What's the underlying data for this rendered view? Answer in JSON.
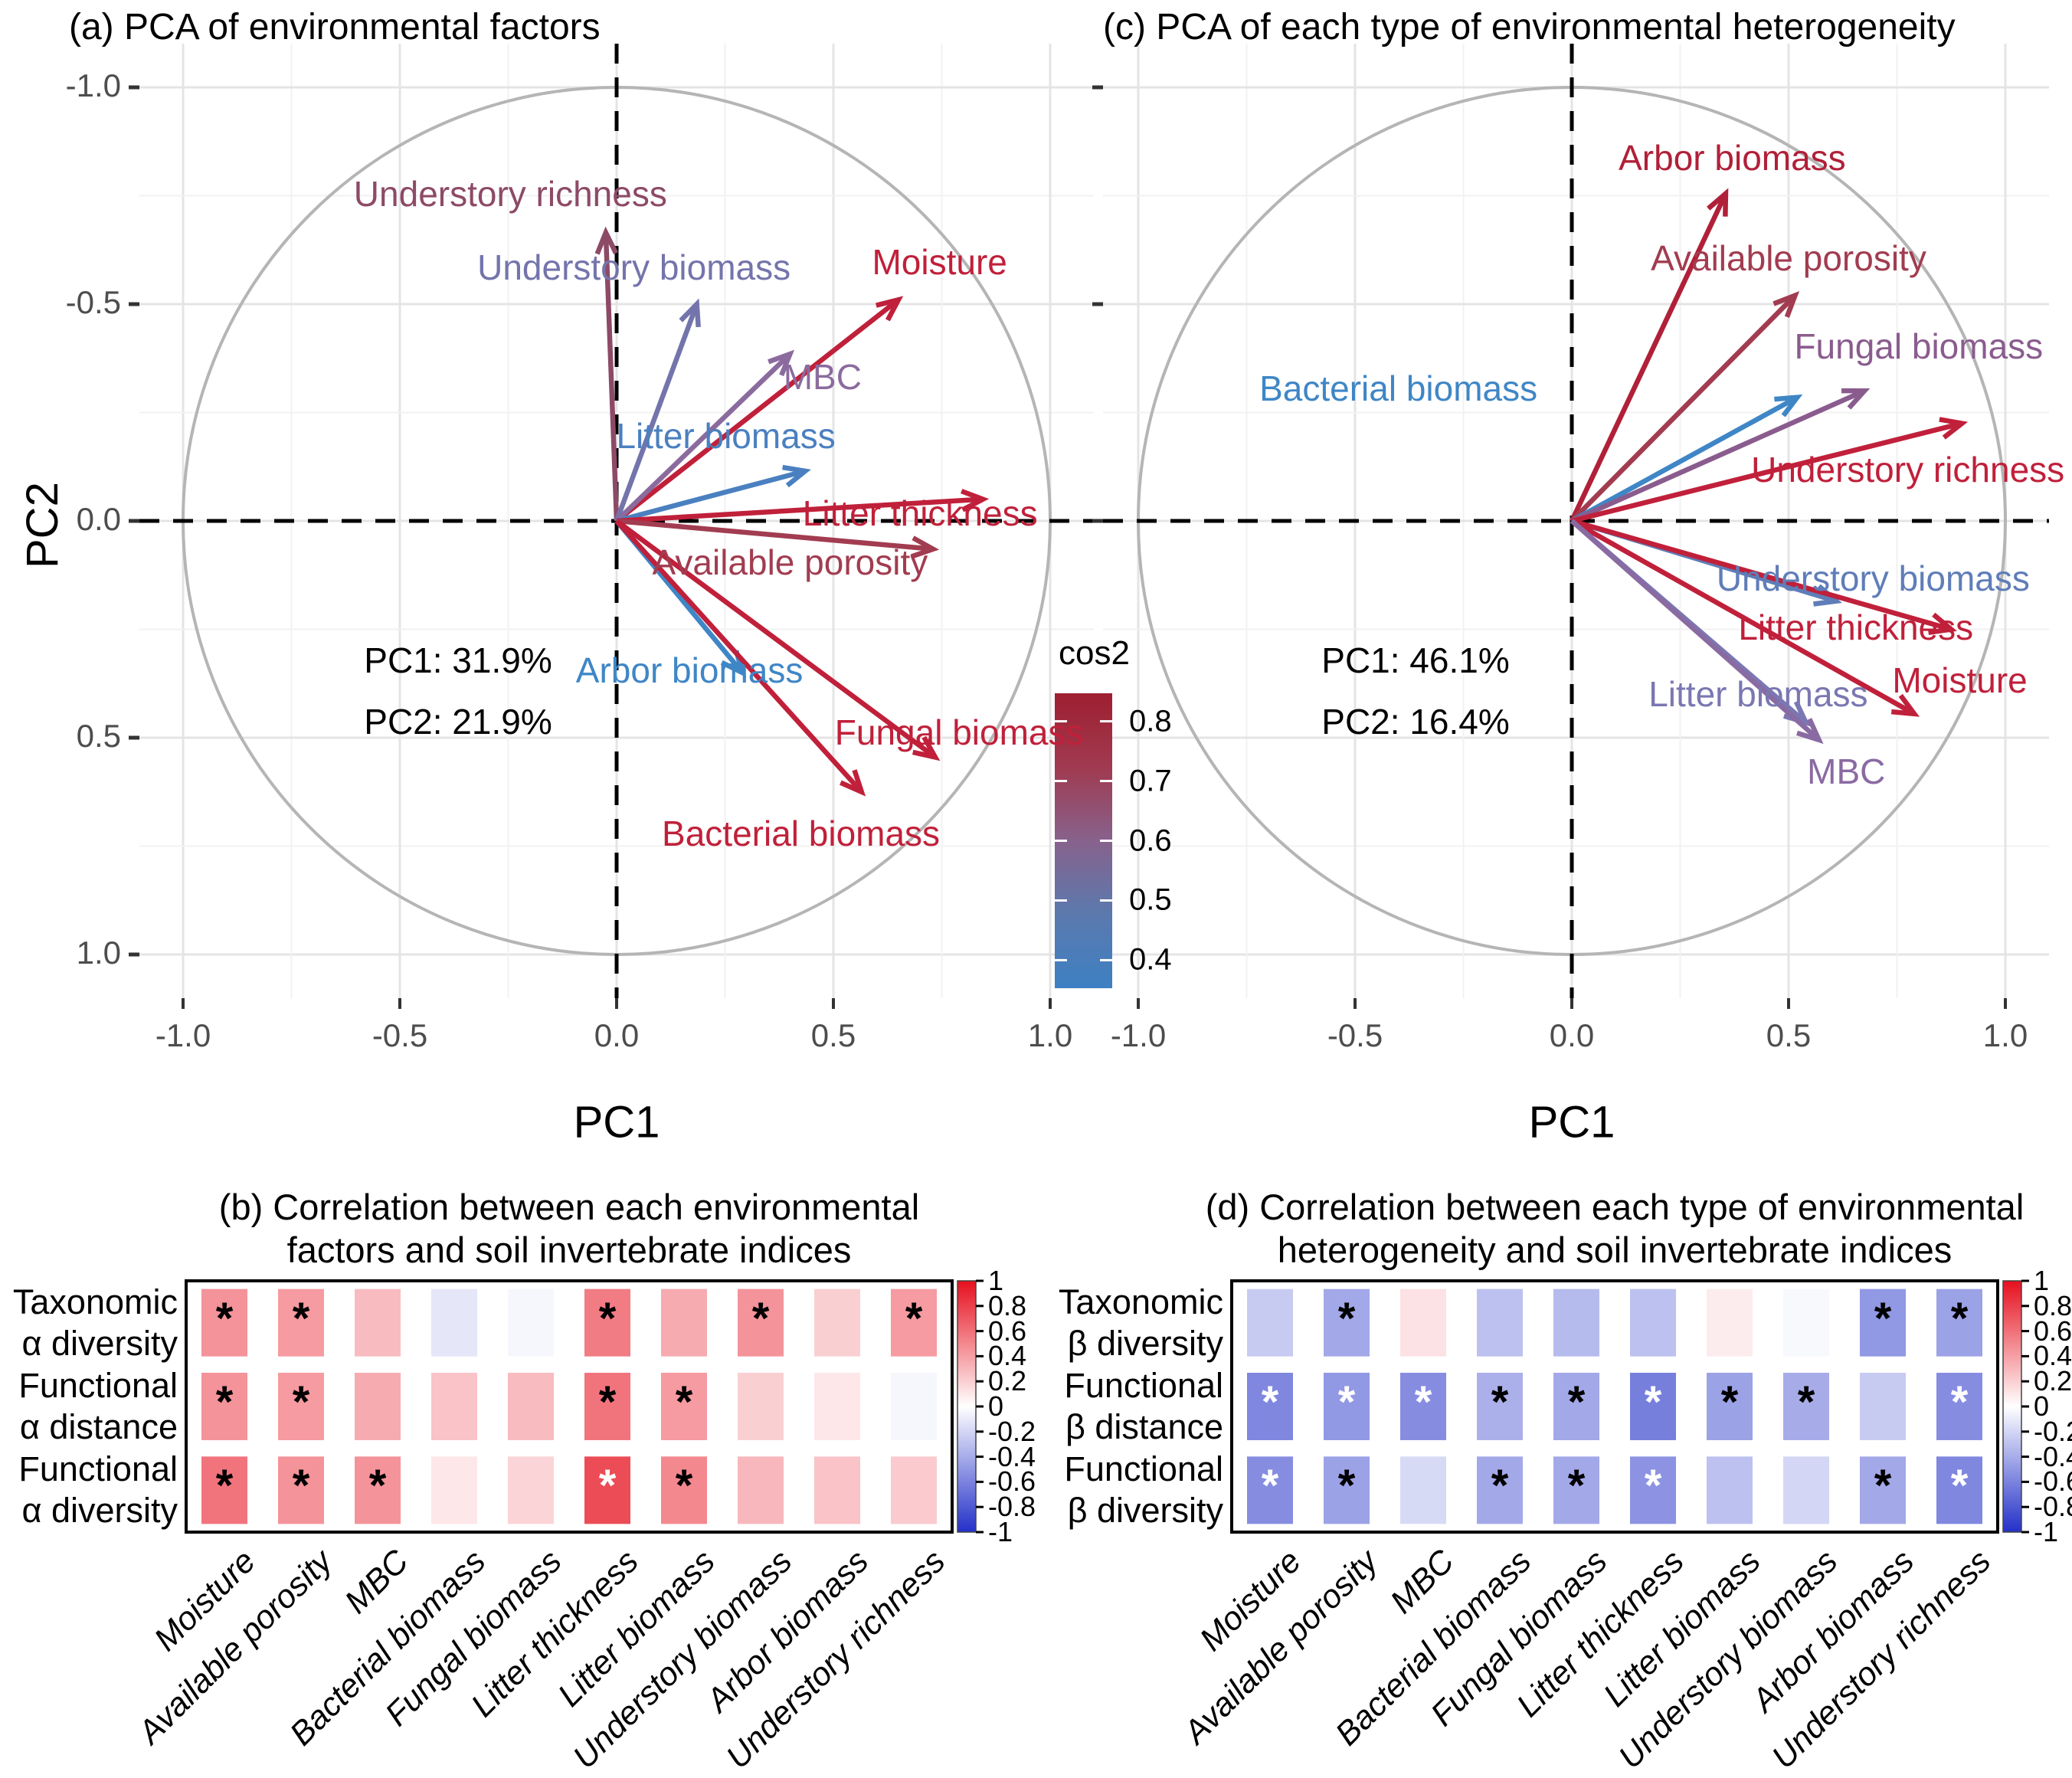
{
  "significance_symbol": "*",
  "legend_cos2": {
    "title": "cos2",
    "tick_labels": [
      "0.8",
      "0.7",
      "0.6",
      "0.5",
      "0.4"
    ],
    "top_color": "#9e1f30",
    "mid_color": "#87628c",
    "bottom_color": "#3d80c2"
  },
  "colors": {
    "heat_positive": "#e6101e",
    "heat_negative": "#2330c8",
    "grid_major": "#e4e4e4",
    "grid_minor": "#f2f2f2",
    "circle": "#b5b5b5",
    "crosshair": "#000000",
    "axis_text": "#4d4d4d"
  },
  "chart_data": [
    {
      "id": "a",
      "type": "scatter",
      "subtype": "pca-biplot-correlation-circle",
      "title": "(a) PCA of environmental factors",
      "xlabel": "PC1",
      "ylabel": "PC2",
      "xlim": [
        -1.1,
        1.1
      ],
      "ylim": [
        -1.1,
        1.1
      ],
      "x_ticks": [
        "-1.0",
        "-0.5",
        "0.0",
        "0.5",
        "1.0"
      ],
      "y_ticks": [
        "1.0",
        "0.5",
        "0.0",
        "-0.5",
        "-1.0"
      ],
      "variance_lines": [
        "PC1: 31.9%",
        "PC2: 21.9%"
      ],
      "unit_circle": true,
      "legend": "cos2 color scale, red = high, blue = low",
      "arrows": [
        {
          "label": "Understory richness",
          "x": -0.025,
          "y": 0.665,
          "label_x": -0.245,
          "label_y": 0.755,
          "color": "#8d4a66"
        },
        {
          "label": "Understory biomass",
          "x": 0.185,
          "y": 0.5,
          "label_x": 0.04,
          "label_y": 0.585,
          "color": "#7474ac"
        },
        {
          "label": "Moisture",
          "x": 0.65,
          "y": 0.51,
          "label_x": 0.745,
          "label_y": 0.597,
          "color": "#c0203a"
        },
        {
          "label": "MBC",
          "x": 0.4,
          "y": 0.385,
          "label_x": 0.475,
          "label_y": 0.332,
          "color": "#8b6b9e"
        },
        {
          "label": "Litter biomass",
          "x": 0.435,
          "y": 0.115,
          "label_x": 0.252,
          "label_y": 0.196,
          "color": "#4a80c0"
        },
        {
          "label": "Litter thickness",
          "x": 0.845,
          "y": 0.05,
          "label_x": 0.7,
          "label_y": 0.018,
          "color": "#c0203a"
        },
        {
          "label": "Available porosity",
          "x": 0.73,
          "y": -0.065,
          "label_x": 0.4,
          "label_y": -0.096,
          "color": "#a23c50"
        },
        {
          "label": "Arbor biomass",
          "x": 0.29,
          "y": -0.35,
          "label_x": 0.168,
          "label_y": -0.345,
          "color": "#3f86c6"
        },
        {
          "label": "Fungal biomass",
          "x": 0.735,
          "y": -0.545,
          "label_x": 0.79,
          "label_y": -0.487,
          "color": "#c0203a"
        },
        {
          "label": "Bacterial biomass",
          "x": 0.565,
          "y": -0.625,
          "label_x": 0.425,
          "label_y": -0.72,
          "color": "#c0203a"
        }
      ]
    },
    {
      "id": "c",
      "type": "scatter",
      "subtype": "pca-biplot-correlation-circle",
      "title": "(c) PCA of each type of environmental heterogeneity",
      "xlabel": "PC1",
      "ylabel": "",
      "xlim": [
        -1.1,
        1.1
      ],
      "ylim": [
        -1.1,
        1.1
      ],
      "x_ticks": [
        "-1.0",
        "-0.5",
        "0.0",
        "0.5",
        "1.0"
      ],
      "y_ticks": [],
      "variance_lines": [
        "PC1: 46.1%",
        "PC2: 16.4%"
      ],
      "unit_circle": true,
      "legend": "cos2 color scale, red = high, blue = low",
      "arrows": [
        {
          "label": "Arbor biomass",
          "x": 0.355,
          "y": 0.755,
          "label_x": 0.37,
          "label_y": 0.838,
          "color": "#b02038"
        },
        {
          "label": "Available porosity",
          "x": 0.515,
          "y": 0.52,
          "label_x": 0.5,
          "label_y": 0.606,
          "color": "#a23c50"
        },
        {
          "label": "Bacterial biomass",
          "x": 0.52,
          "y": 0.285,
          "label_x": -0.4,
          "label_y": 0.306,
          "color": "#3f86c6"
        },
        {
          "label": "Fungal biomass",
          "x": 0.675,
          "y": 0.3,
          "label_x": 0.8,
          "label_y": 0.402,
          "color": "#8a5c8e"
        },
        {
          "label": "Understory richness",
          "x": 0.9,
          "y": 0.225,
          "label_x": 0.775,
          "label_y": 0.118,
          "color": "#c0203a"
        },
        {
          "label": "Understory biomass",
          "x": 0.61,
          "y": -0.185,
          "label_x": 0.695,
          "label_y": -0.133,
          "color": "#5f7db8"
        },
        {
          "label": "Litter thickness",
          "x": 0.875,
          "y": -0.25,
          "label_x": 0.655,
          "label_y": -0.245,
          "color": "#c0203a"
        },
        {
          "label": "Moisture",
          "x": 0.79,
          "y": -0.445,
          "label_x": 0.895,
          "label_y": -0.368,
          "color": "#c0203a"
        },
        {
          "label": "Litter biomass",
          "x": 0.54,
          "y": -0.465,
          "label_x": 0.43,
          "label_y": -0.4,
          "color": "#7a77b2"
        },
        {
          "label": "MBC",
          "x": 0.57,
          "y": -0.505,
          "label_x": 0.633,
          "label_y": -0.578,
          "color": "#8a6aa2"
        }
      ]
    },
    {
      "id": "b",
      "type": "heatmap",
      "title_lines": [
        "(b) Correlation between each environmental",
        "factors and soil invertebrate indices"
      ],
      "row_labels": [
        [
          "Taxonomic",
          "α diversity"
        ],
        [
          "Functional",
          "α distance"
        ],
        [
          "Functional",
          "α diversity"
        ]
      ],
      "col_labels": [
        "Moisture",
        "Available porosity",
        "MBC",
        "Bacterial biomass",
        "Fungal biomass",
        "Litter thickness",
        "Litter biomass",
        "Understory biomass",
        "Arbor biomass",
        "Understory richness"
      ],
      "values": [
        [
          0.45,
          0.42,
          0.28,
          -0.12,
          -0.04,
          0.55,
          0.35,
          0.45,
          0.2,
          0.42
        ],
        [
          0.45,
          0.42,
          0.35,
          0.25,
          0.28,
          0.58,
          0.42,
          0.2,
          0.1,
          -0.04
        ],
        [
          0.58,
          0.45,
          0.45,
          0.1,
          0.18,
          0.75,
          0.5,
          0.3,
          0.25,
          0.22
        ]
      ],
      "sig": [
        [
          "black",
          "black",
          "",
          "",
          "",
          "black",
          "",
          "black",
          "",
          "black"
        ],
        [
          "black",
          "black",
          "",
          "",
          "",
          "black",
          "black",
          "",
          "",
          ""
        ],
        [
          "black",
          "black",
          "black",
          "",
          "",
          "white",
          "black",
          "",
          "",
          ""
        ]
      ],
      "colorbar_ticks": [
        "1",
        "0.8",
        "0.6",
        "0.4",
        "0.2",
        "0",
        "-0.2",
        "-0.4",
        "-0.6",
        "-0.8",
        "-1"
      ],
      "colorbar_limits": [
        1,
        -1
      ]
    },
    {
      "id": "d",
      "type": "heatmap",
      "title_lines": [
        "(d) Correlation between each type of environmental",
        "heterogeneity and soil invertebrate indices"
      ],
      "row_labels": [
        [
          "Taxonomic",
          "β diversity"
        ],
        [
          "Functional",
          "β distance"
        ],
        [
          "Functional",
          "β diversity"
        ]
      ],
      "col_labels": [
        "Moisture",
        "Available porosity",
        "MBC",
        "Bacterial biomass",
        "Fungal biomass",
        "Litter thickness",
        "Litter biomass",
        "Understory biomass",
        "Arbor biomass",
        "Understory richness"
      ],
      "values": [
        [
          -0.25,
          -0.42,
          0.12,
          -0.3,
          -0.33,
          -0.3,
          0.08,
          -0.03,
          -0.5,
          -0.45
        ],
        [
          -0.58,
          -0.5,
          -0.55,
          -0.38,
          -0.42,
          -0.62,
          -0.45,
          -0.4,
          -0.25,
          -0.55
        ],
        [
          -0.55,
          -0.45,
          -0.18,
          -0.42,
          -0.42,
          -0.52,
          -0.3,
          -0.2,
          -0.42,
          -0.58
        ]
      ],
      "sig": [
        [
          "",
          "black",
          "",
          "",
          "",
          "",
          "",
          "",
          "black",
          "black"
        ],
        [
          "white",
          "white",
          "white",
          "black",
          "black",
          "white",
          "black",
          "black",
          "",
          "white"
        ],
        [
          "white",
          "black",
          "",
          "black",
          "black",
          "white",
          "",
          "",
          "black",
          "white"
        ]
      ],
      "colorbar_ticks": [
        "1",
        "0.8",
        "0.6",
        "0.4",
        "0.2",
        "0",
        "-0.2",
        "-0.4",
        "-0.6",
        "-0.8",
        "-1"
      ],
      "colorbar_limits": [
        1,
        -1
      ]
    }
  ]
}
